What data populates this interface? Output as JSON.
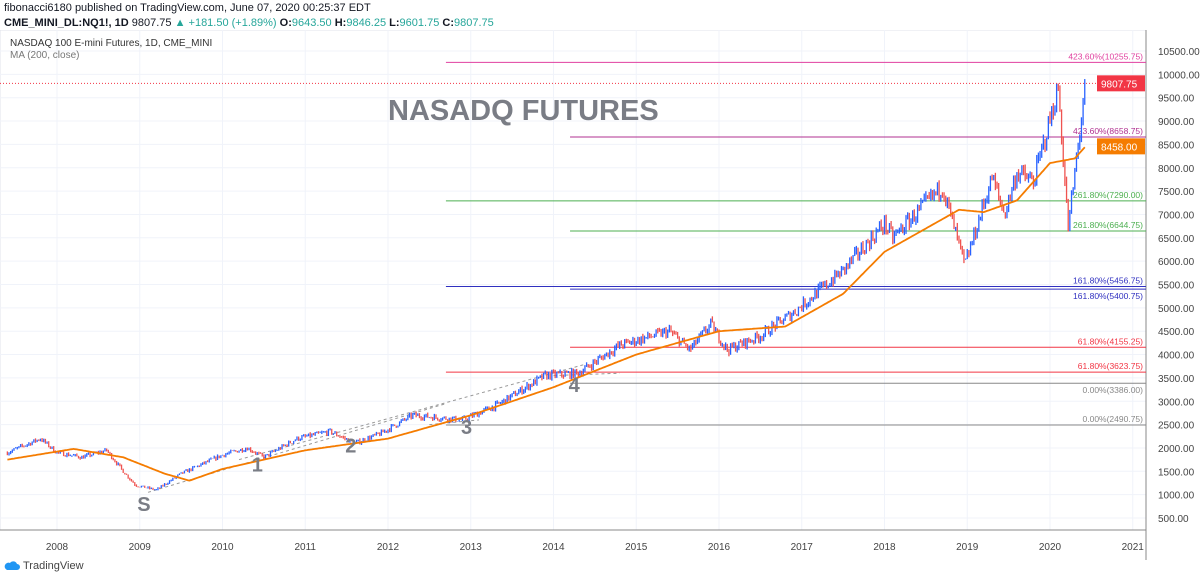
{
  "header": {
    "publisher": "fibonacci6180 published on TradingView.com, June 07, 2020 00:25:37 EDT",
    "symbol": "CME_MINI_DL:NQ1!, 1D",
    "last": "9807.75",
    "change": "▲ +181.50 (+1.89%)",
    "o_label": "O:",
    "o": "9643.50",
    "h_label": "H:",
    "h": "9846.25",
    "l_label": "L:",
    "l": "9601.75",
    "c_label": "C:",
    "c": "9807.75"
  },
  "legend": {
    "series": "NASDAQ 100 E-mini Futures, 1D, CME_MINI",
    "indicator": "MA (200, close)"
  },
  "footer": {
    "brand": "TradingView"
  },
  "colors": {
    "up": "#2962ff",
    "down": "#ef5350",
    "ma": "#f57c00",
    "last_price": "#f23645"
  },
  "chart_data": {
    "type": "candlestick",
    "title": "NASADQ FUTURES",
    "ylim": [
      0,
      10750
    ],
    "yticks": [
      "500.00",
      "1000.00",
      "1500.00",
      "2000.00",
      "2500.00",
      "3000.00",
      "3500.00",
      "4000.00",
      "4500.00",
      "5000.00",
      "5500.00",
      "6000.00",
      "6500.00",
      "7000.00",
      "7500.00",
      "8000.00",
      "8500.00",
      "9000.00",
      "9500.00",
      "10000.00",
      "10500.00"
    ],
    "xticks": [
      "2008",
      "2009",
      "2010",
      "2011",
      "2012",
      "2013",
      "2014",
      "2015",
      "2016",
      "2017",
      "2018",
      "2019",
      "2020",
      "2021"
    ],
    "price_approx": [
      [
        2007.4,
        1900
      ],
      [
        2007.8,
        2200
      ],
      [
        2008.0,
        1900
      ],
      [
        2008.3,
        1800
      ],
      [
        2008.6,
        1950
      ],
      [
        2008.8,
        1500
      ],
      [
        2008.95,
        1200
      ],
      [
        2009.2,
        1100
      ],
      [
        2009.5,
        1450
      ],
      [
        2010.0,
        1850
      ],
      [
        2010.3,
        2000
      ],
      [
        2010.5,
        1800
      ],
      [
        2010.9,
        2200
      ],
      [
        2011.3,
        2350
      ],
      [
        2011.6,
        2100
      ],
      [
        2011.9,
        2300
      ],
      [
        2012.3,
        2700
      ],
      [
        2012.9,
        2600
      ],
      [
        2013.3,
        2900
      ],
      [
        2013.9,
        3550
      ],
      [
        2014.3,
        3600
      ],
      [
        2014.8,
        4200
      ],
      [
        2015.4,
        4500
      ],
      [
        2015.65,
        4100
      ],
      [
        2015.9,
        4650
      ],
      [
        2016.1,
        4100
      ],
      [
        2016.5,
        4400
      ],
      [
        2016.9,
        4900
      ],
      [
        2017.5,
        5800
      ],
      [
        2018.0,
        6800
      ],
      [
        2018.1,
        6500
      ],
      [
        2018.7,
        7600
      ],
      [
        2018.97,
        5900
      ],
      [
        2019.3,
        7800
      ],
      [
        2019.45,
        7000
      ],
      [
        2019.6,
        7900
      ],
      [
        2019.8,
        7700
      ],
      [
        2020.1,
        9700
      ],
      [
        2020.22,
        6700
      ],
      [
        2020.43,
        9800
      ]
    ],
    "ma200_approx": [
      [
        2007.4,
        1750
      ],
      [
        2008.2,
        1980
      ],
      [
        2008.8,
        1800
      ],
      [
        2009.3,
        1450
      ],
      [
        2009.6,
        1300
      ],
      [
        2010.0,
        1550
      ],
      [
        2011.0,
        1950
      ],
      [
        2012.0,
        2200
      ],
      [
        2013.0,
        2700
      ],
      [
        2014.0,
        3300
      ],
      [
        2015.0,
        4000
      ],
      [
        2016.0,
        4500
      ],
      [
        2016.8,
        4600
      ],
      [
        2017.5,
        5300
      ],
      [
        2018.0,
        6200
      ],
      [
        2018.9,
        7100
      ],
      [
        2019.2,
        7050
      ],
      [
        2019.6,
        7300
      ],
      [
        2020.0,
        8100
      ],
      [
        2020.3,
        8200
      ],
      [
        2020.43,
        8458
      ]
    ],
    "price_labels": [
      {
        "text": "9807.75",
        "value": 9807.75,
        "color": "#f23645"
      },
      {
        "text": "8458.00",
        "value": 8458,
        "color": "#f57c00"
      }
    ],
    "fib_levels": [
      {
        "label": "423.60%(10255.75)",
        "value": 10255.75,
        "start": 2012.7,
        "color": "#e040a0"
      },
      {
        "label": "423.60%(8658.75)",
        "value": 8658.75,
        "start": 2014.2,
        "color": "#b03090"
      },
      {
        "label": "261.80%(7290.00)",
        "value": 7290,
        "start": 2012.7,
        "color": "#4caf50"
      },
      {
        "label": "261.80%(6644.75)",
        "value": 6644.75,
        "start": 2014.2,
        "color": "#4caf50"
      },
      {
        "label": "161.80%(5456.75)",
        "value": 5456.75,
        "start": 2012.7,
        "color": "#3030c0"
      },
      {
        "label": "161.80%(5400.75)",
        "value": 5400.75,
        "start": 2014.2,
        "color": "#3030c0"
      },
      {
        "label": "61.80%(4155.25)",
        "value": 4155.25,
        "start": 2014.2,
        "color": "#f23645"
      },
      {
        "label": "61.80%(3623.75)",
        "value": 3623.75,
        "start": 2012.7,
        "color": "#f23645"
      },
      {
        "label": "0.00%(3386.00)",
        "value": 3386,
        "start": 2014.2,
        "color": "#888888"
      },
      {
        "label": "0.00%(2490.75)",
        "value": 2490.75,
        "start": 2012.7,
        "color": "#888888"
      }
    ],
    "annotations": [
      {
        "text": "S",
        "x": 2009.05,
        "y": 650
      },
      {
        "text": "1",
        "x": 2010.42,
        "y": 1500
      },
      {
        "text": "2",
        "x": 2011.55,
        "y": 1900
      },
      {
        "text": "3",
        "x": 2012.95,
        "y": 2300
      },
      {
        "text": "4",
        "x": 2014.25,
        "y": 3200
      }
    ]
  }
}
